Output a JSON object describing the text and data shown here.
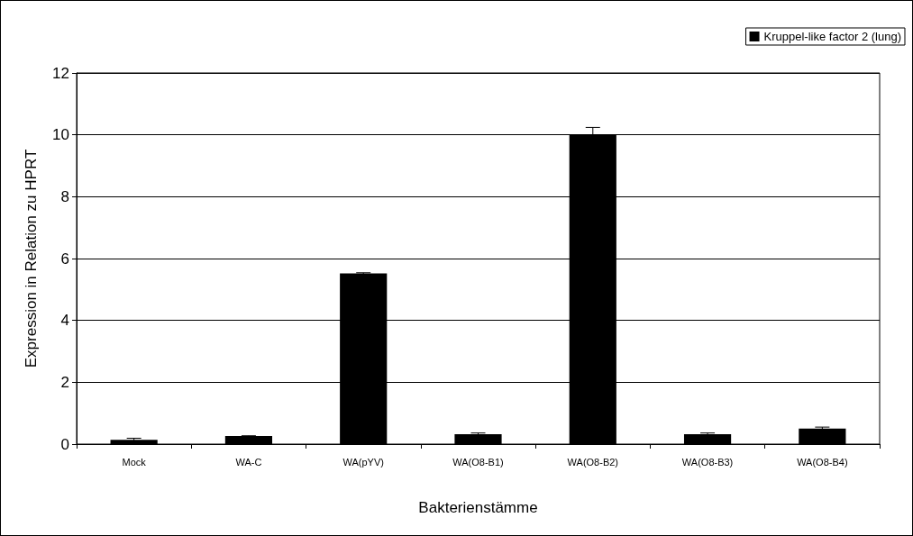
{
  "chart_data": {
    "type": "bar",
    "xlabel": "Bakterienstämme",
    "ylabel": "Expression in Relation zu HPRT",
    "categories": [
      "Mock",
      "WA-C",
      "WA(pYV)",
      "WA(O8-B1)",
      "WA(O8-B2)",
      "WA(O8-B3)",
      "WA(O8-B4)"
    ],
    "series": [
      {
        "name": "Kruppel-like factor 2 (lung)",
        "color": "#000000",
        "values": [
          0.14,
          0.26,
          5.52,
          0.32,
          10.02,
          0.32,
          0.5
        ],
        "errors": [
          0.05,
          0.01,
          0.02,
          0.04,
          0.22,
          0.04,
          0.05
        ]
      }
    ],
    "ylim": [
      0,
      12
    ],
    "yticks": [
      0,
      2,
      4,
      6,
      8,
      10,
      12
    ],
    "grid": "y",
    "legend": "top right"
  }
}
